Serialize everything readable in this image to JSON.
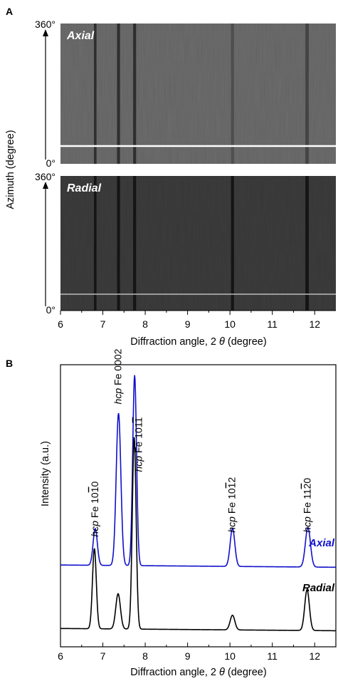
{
  "chart_data": [
    {
      "panel": "A",
      "type": "heatmap",
      "xlabel_prefix": "Diffraction angle, 2 ",
      "xlabel_symbol": "θ",
      "xlabel_suffix": " (degree)",
      "ylabel": "Azimuth (degree)",
      "xlim": [
        6,
        12.5
      ],
      "xticks": [
        "6",
        "7",
        "8",
        "9",
        "10",
        "11",
        "12"
      ],
      "maps": [
        {
          "name": "Axial",
          "ytop": "360°",
          "ybottom": "0°",
          "background": "#6e6e6e"
        },
        {
          "name": "Radial",
          "ytop": "360°",
          "ybottom": "0°",
          "background": "#3d3d3d"
        }
      ],
      "bands": [
        {
          "x": 6.82,
          "w": 0.06
        },
        {
          "x": 7.37,
          "w": 0.07
        },
        {
          "x": 7.75,
          "w": 0.07
        },
        {
          "x": 10.06,
          "w": 0.07
        },
        {
          "x": 11.82,
          "w": 0.08
        }
      ]
    },
    {
      "panel": "B",
      "type": "line",
      "xlabel_prefix": "Diffraction angle, 2 ",
      "xlabel_symbol": "θ",
      "xlabel_suffix": " (degree)",
      "ylabel": "Intensity (a.u.)",
      "xlim": [
        6,
        12.5
      ],
      "ylim": [
        0,
        10
      ],
      "xticks": [
        "6",
        "7",
        "8",
        "9",
        "10",
        "11",
        "12"
      ],
      "series": [
        {
          "name": "Axial",
          "color": "#1010cc",
          "baseline": 2.9,
          "peaks": [
            {
              "x": 6.82,
              "h": 1.3,
              "w": 0.05
            },
            {
              "x": 7.37,
              "h": 5.4,
              "w": 0.055
            },
            {
              "x": 7.75,
              "h": 6.75,
              "w": 0.045
            },
            {
              "x": 10.06,
              "h": 1.35,
              "w": 0.055
            },
            {
              "x": 11.84,
              "h": 1.4,
              "w": 0.06
            }
          ]
        },
        {
          "name": "Radial",
          "color": "#000000",
          "baseline": 0.65,
          "peaks": [
            {
              "x": 6.8,
              "h": 2.85,
              "w": 0.045
            },
            {
              "x": 7.36,
              "h": 1.25,
              "w": 0.055
            },
            {
              "x": 7.74,
              "h": 6.8,
              "w": 0.045
            },
            {
              "x": 10.06,
              "h": 0.52,
              "w": 0.055
            },
            {
              "x": 11.82,
              "h": 1.45,
              "w": 0.055
            }
          ]
        }
      ],
      "annotations": [
        {
          "name": "peak-1010",
          "italic": "hcp",
          "text": " Fe 10",
          "bar": "1",
          "tail": "0",
          "x": 6.82,
          "y": 3.9
        },
        {
          "name": "peak-0002",
          "italic": "hcp",
          "text": " Fe 0002",
          "bar": "",
          "tail": "",
          "x": 7.37,
          "y": 8.6
        },
        {
          "name": "peak-1011",
          "italic": "hcp",
          "text": " Fe 101",
          "bar": "1",
          "tail": "",
          "x": 7.86,
          "y": 6.2
        },
        {
          "name": "peak-1012",
          "italic": "hcp",
          "text": " Fe 10",
          "bar": "1",
          "tail": "2",
          "x": 10.06,
          "y": 4.05
        },
        {
          "name": "peak-1120",
          "italic": "hcp",
          "text": " Fe 11",
          "bar": "2",
          "tail": "0",
          "x": 11.84,
          "y": 4.05
        }
      ]
    }
  ]
}
